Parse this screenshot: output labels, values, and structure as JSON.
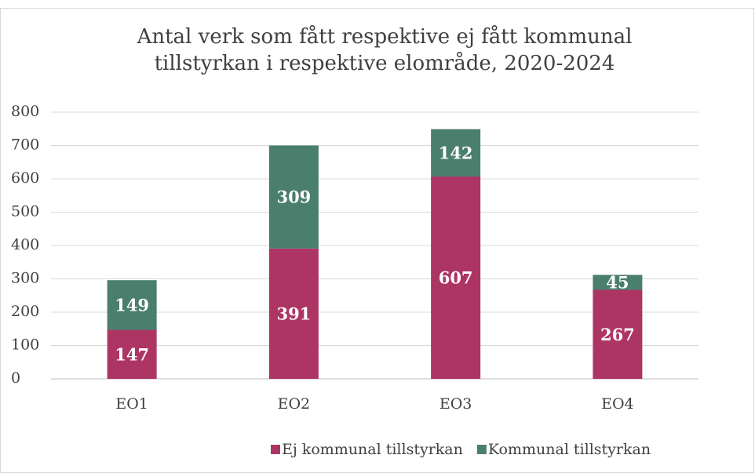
{
  "chart_data": {
    "type": "stacked_bar",
    "title": "Antal verk som fått respektive ej fått kommunal tillstyrkan i respektive elområde, 2020-2024",
    "categories": [
      "EO1",
      "EO2",
      "EO3",
      "EO4"
    ],
    "series": [
      {
        "name": "Ej kommunal tillstyrkan",
        "color": "#ad3564",
        "values": [
          147,
          391,
          607,
          267
        ]
      },
      {
        "name": "Kommunal tillstyrkan",
        "color": "#4a7e6d",
        "values": [
          149,
          309,
          142,
          45
        ]
      }
    ],
    "ylim": [
      0,
      800
    ],
    "yticks": [
      0,
      100,
      200,
      300,
      400,
      500,
      600,
      700,
      800
    ],
    "grid": true,
    "legend": "bottom"
  }
}
